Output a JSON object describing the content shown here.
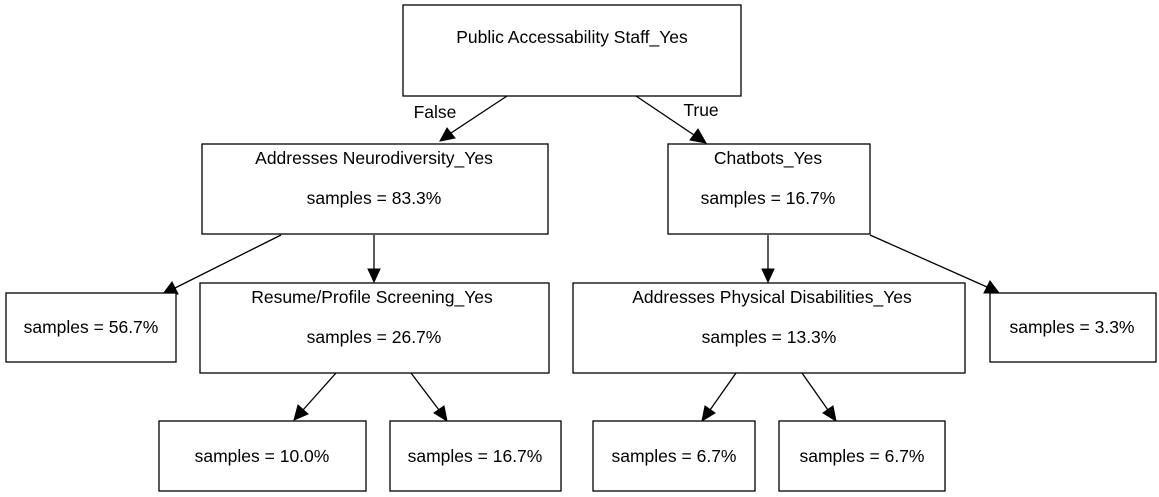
{
  "tree": {
    "root": {
      "label": "Public Accessability Staff_Yes",
      "false_label": "False",
      "true_label": "True",
      "false": {
        "label": "Addresses Neurodiversity_Yes",
        "samples": "samples = 83.3%",
        "left": {
          "samples": "samples = 56.7%"
        },
        "right": {
          "label": "Resume/Profile Screening_Yes",
          "samples": "samples = 26.7%",
          "left": {
            "samples": "samples = 10.0%"
          },
          "right": {
            "samples": "samples = 16.7%"
          }
        }
      },
      "true": {
        "label": "Chatbots_Yes",
        "samples": "samples = 16.7%",
        "left": {
          "label": "Addresses Physical Disabilities_Yes",
          "samples": "samples = 13.3%",
          "left": {
            "samples": "samples = 6.7%"
          },
          "right": {
            "samples": "samples = 6.7%"
          }
        },
        "right": {
          "samples": "samples = 3.3%"
        }
      }
    }
  }
}
